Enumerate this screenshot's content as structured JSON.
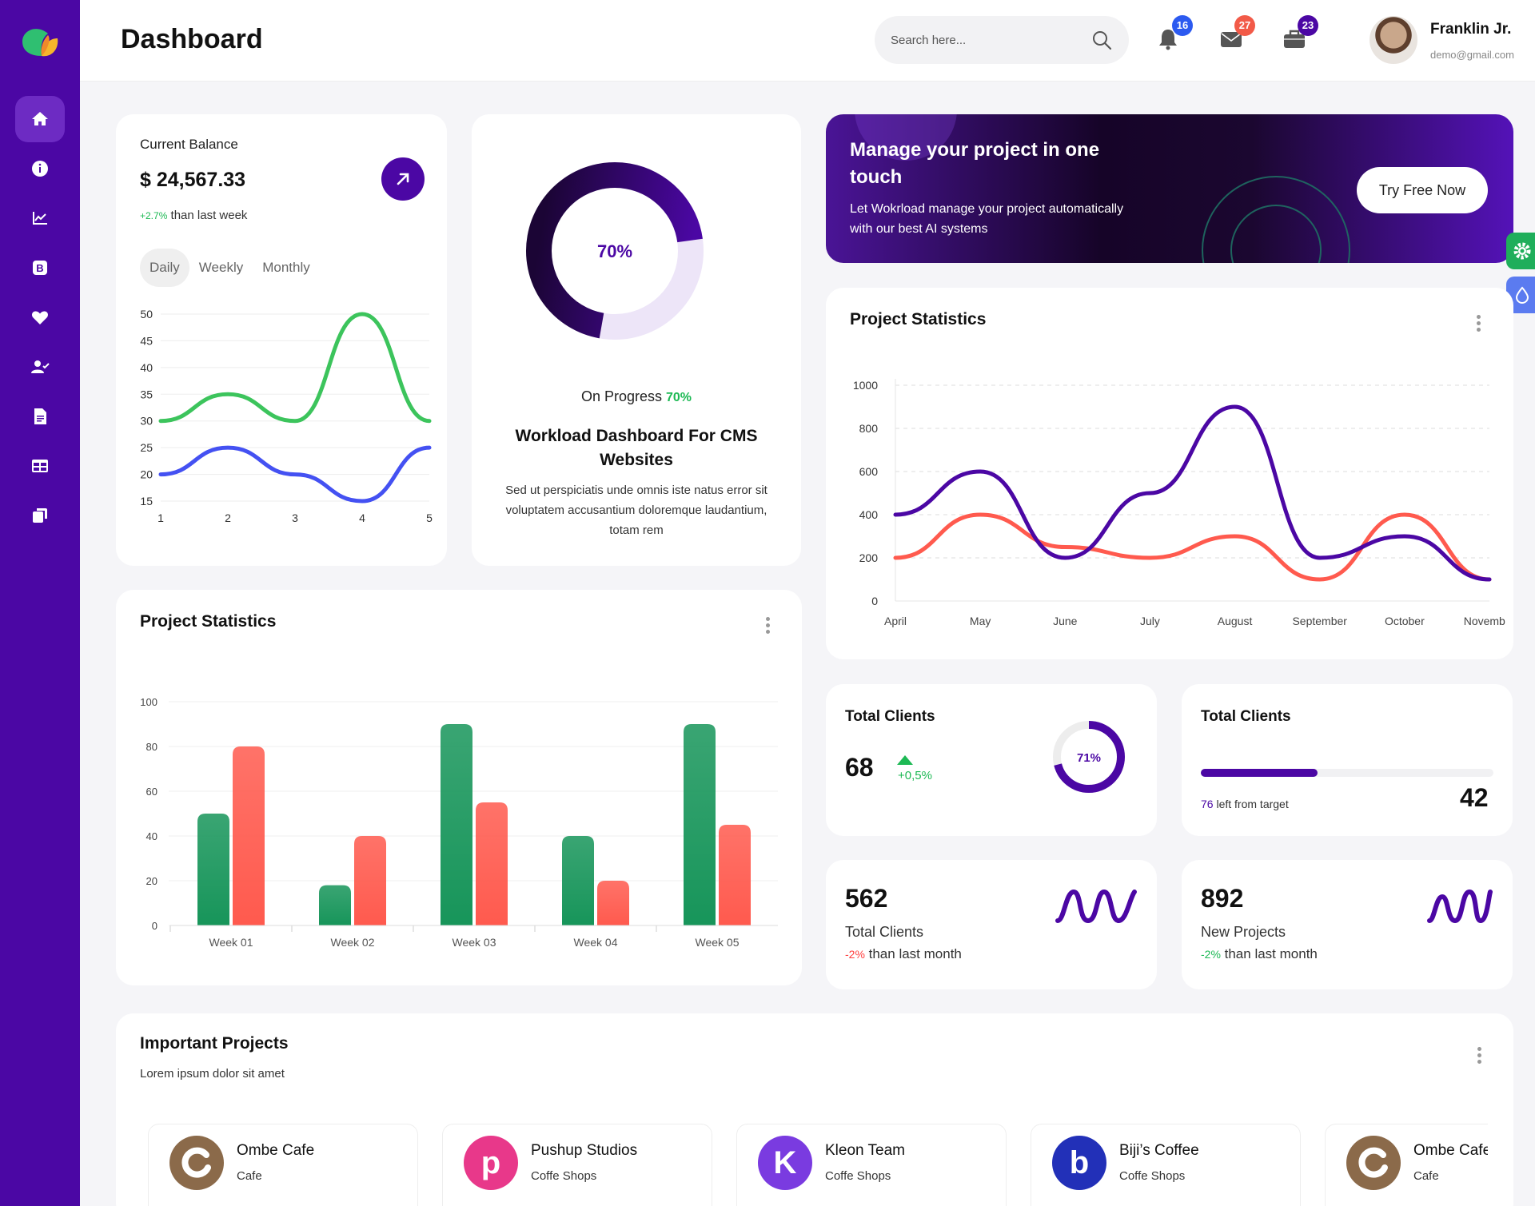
{
  "header": {
    "title": "Dashboard",
    "search_placeholder": "Search here...",
    "notifications": {
      "bell": "16",
      "mail": "27",
      "briefcase": "23"
    },
    "user": {
      "name": "Franklin Jr.",
      "email": "demo@gmail.com"
    }
  },
  "sidebar": {
    "items": [
      {
        "icon": "home-icon",
        "active": true
      },
      {
        "icon": "info-icon"
      },
      {
        "icon": "chart-icon"
      },
      {
        "icon": "bootstrap-icon"
      },
      {
        "icon": "heart-icon"
      },
      {
        "icon": "user-check-icon"
      },
      {
        "icon": "file-icon"
      },
      {
        "icon": "table-icon"
      },
      {
        "icon": "copy-icon"
      }
    ]
  },
  "balance": {
    "label": "Current Balance",
    "value": "$ 24,567.33",
    "change_pct": "+2.7%",
    "change_text": " than last week",
    "tabs": [
      "Daily",
      "Weekly",
      "Monthly"
    ],
    "active_tab": "Daily"
  },
  "progress": {
    "percent_label": "70%",
    "percent": 70,
    "on_progress_label": "On Progress ",
    "on_progress_value": "70%",
    "title": "Workload Dashboard For CMS Websites",
    "description": "Sed ut perspiciatis unde omnis iste natus error sit voluptatem accusantium doloremque laudantium, totam rem"
  },
  "promo": {
    "title": "Manage your project in one touch",
    "description": "Let Wokrload manage your project automatically with our best AI systems",
    "button": "Try Free Now"
  },
  "project_statistics_line": {
    "title": "Project Statistics"
  },
  "project_statistics_bar": {
    "title": "Project Statistics"
  },
  "total_clients_1": {
    "title": "Total Clients",
    "value": "68",
    "change": "+0,5%",
    "ring_label": "71%",
    "ring_percent": 71
  },
  "total_clients_2": {
    "title": "Total Clients",
    "left_num": "76",
    "left_text": " left from target",
    "value": "42",
    "progress": 0.4
  },
  "total_clients_3": {
    "value": "562",
    "label": "Total Clients",
    "change": "-2%",
    "change_text": " than last month"
  },
  "new_projects": {
    "value": "892",
    "label": "New Projects",
    "change": "-2%",
    "change_text": " than last month"
  },
  "important_projects": {
    "title": "Important Projects",
    "subtitle": "Lorem ipsum dolor sit amet",
    "items": [
      {
        "name": "Ombe Cafe",
        "category": "Cafe",
        "logo_letter": "",
        "color": "#8B6A4A"
      },
      {
        "name": "Pushup Studios",
        "category": "Coffe Shops",
        "logo_letter": "p",
        "color": "#E8388A"
      },
      {
        "name": "Kleon Team",
        "category": "Coffe Shops",
        "logo_letter": "K",
        "color": "#7A3BE0"
      },
      {
        "name": "Biji’s Coffee",
        "category": "Coffe Shops",
        "logo_letter": "b",
        "color": "#2230B8"
      },
      {
        "name": "Ombe Cafe",
        "category": "Cafe",
        "logo_letter": "",
        "color": "#8B6A4A"
      }
    ]
  },
  "colors": {
    "primary": "#4B07A4",
    "green": "#1DB954",
    "red": "#FF5A4E",
    "blue": "#3F4CFF"
  },
  "chart_data": [
    {
      "type": "line",
      "x": [
        1,
        2,
        3,
        4,
        5
      ],
      "series": [
        {
          "values": [
            30,
            35,
            30,
            50,
            30
          ],
          "color": "#3CC45C"
        },
        {
          "values": [
            20,
            25,
            20,
            15,
            25
          ],
          "color": "#4451F2"
        }
      ],
      "yticks": [
        15,
        20,
        25,
        30,
        35,
        40,
        45,
        50
      ],
      "ylim": [
        15,
        50
      ],
      "grid": true
    },
    {
      "type": "line",
      "categories": [
        "April",
        "May",
        "June",
        "July",
        "August",
        "September",
        "October",
        "November"
      ],
      "series": [
        {
          "values": [
            400,
            600,
            200,
            500,
            900,
            200,
            300,
            100
          ],
          "color": "#4B07A4"
        },
        {
          "values": [
            200,
            400,
            250,
            200,
            300,
            100,
            400,
            100
          ],
          "color": "#FF5A4E"
        }
      ],
      "yticks": [
        0,
        200,
        400,
        600,
        800,
        1000
      ],
      "ylim": [
        0,
        1000
      ],
      "grid": true
    },
    {
      "type": "bar",
      "categories": [
        "Week 01",
        "Week 02",
        "Week 03",
        "Week 04",
        "Week 05"
      ],
      "series": [
        {
          "values": [
            50,
            18,
            90,
            40,
            90
          ],
          "color": "#17955A"
        },
        {
          "values": [
            80,
            40,
            55,
            20,
            45
          ],
          "color": "#FF5A4E"
        }
      ],
      "yticks": [
        0,
        20,
        40,
        60,
        80,
        100
      ],
      "ylim": [
        0,
        100
      ],
      "grid": true
    }
  ]
}
